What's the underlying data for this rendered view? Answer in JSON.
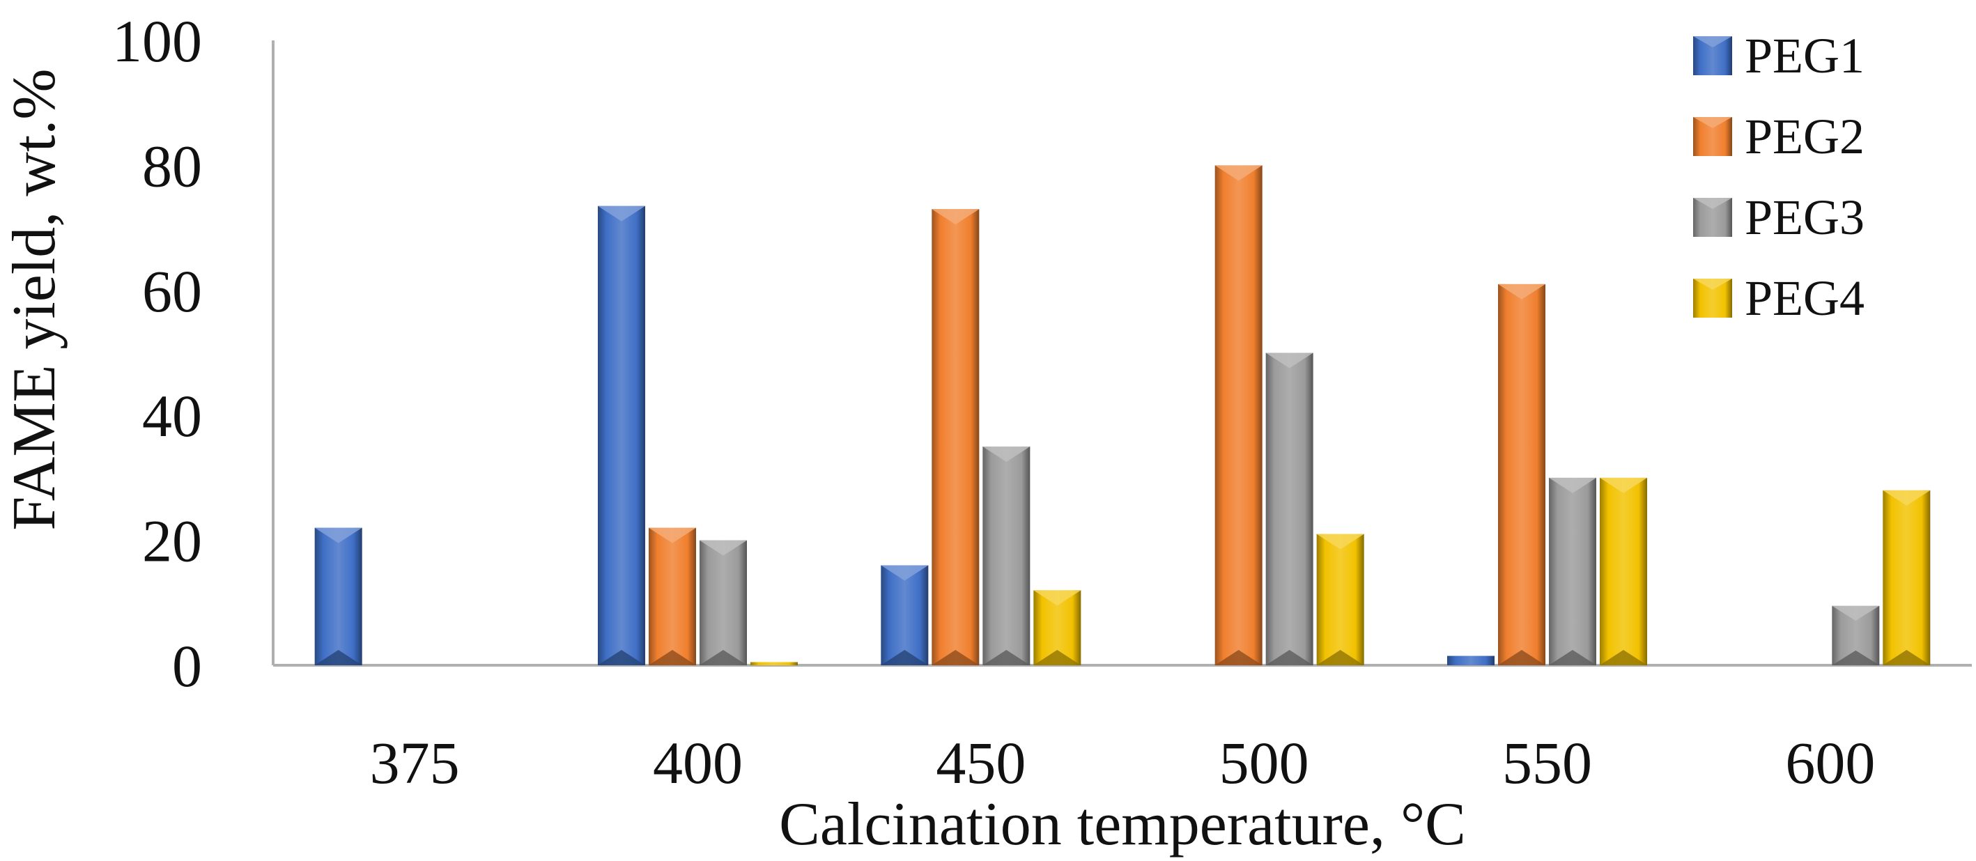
{
  "chart_data": {
    "type": "bar",
    "title": "",
    "xlabel": "Calcination temperature, °C",
    "ylabel": "FAME yield, wt.%",
    "ylim": [
      0,
      100
    ],
    "yticks": [
      "0",
      "20",
      "40",
      "60",
      "80",
      "100"
    ],
    "grid": false,
    "legend_position": "top-right",
    "categories": [
      "375",
      "400",
      "450",
      "500",
      "550",
      "600"
    ],
    "series": [
      {
        "name": "PEG1",
        "color": "#3f6fc6",
        "values": [
          22,
          73.5,
          16,
          0,
          1.5,
          0
        ]
      },
      {
        "name": "PEG2",
        "color": "#f07f2e",
        "values": [
          0,
          22,
          73,
          80,
          61,
          0
        ]
      },
      {
        "name": "PEG3",
        "color": "#9b9b9b",
        "values": [
          0,
          20,
          35,
          50,
          30,
          9.5
        ]
      },
      {
        "name": "PEG4",
        "color": "#f2c200",
        "values": [
          0,
          0.5,
          12,
          21,
          30,
          28
        ]
      }
    ]
  }
}
